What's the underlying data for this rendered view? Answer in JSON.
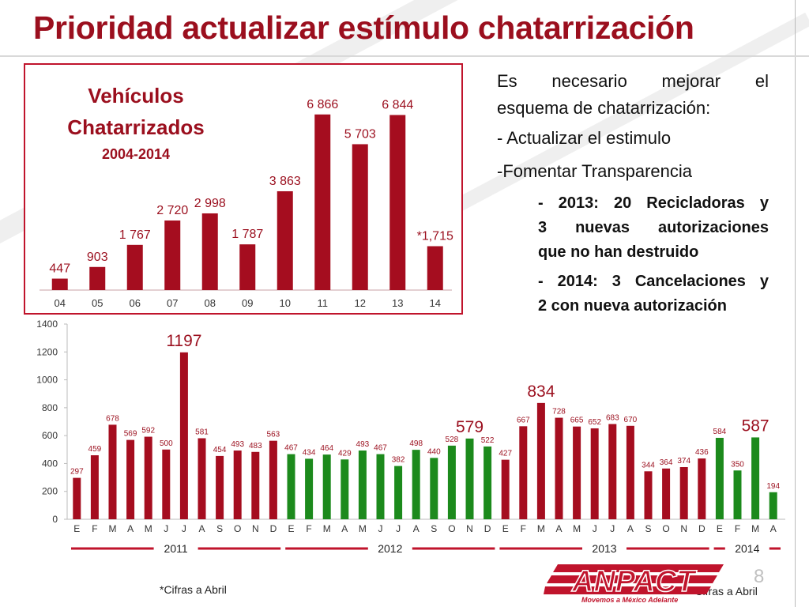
{
  "title": "Prioridad actualizar estímulo chatarrización",
  "annual_box": {
    "title_line1": "Vehículos",
    "title_line2": "Chatarrizados",
    "subtitle": "2004-2014"
  },
  "bullets": {
    "intro_line1": "Es necesario mejorar el",
    "intro_line2": "esquema de chatarrización:",
    "item1": "- Actualizar el estimulo",
    "item2": "-Fomentar Transparencia",
    "sub1_line1": "- 2013: 20 Recicladoras y",
    "sub1_line2": "3 nuevas autorizaciones",
    "sub1_line3": "que no han destruido",
    "sub2_line1": "- 2014: 3 Cancelaciones y",
    "sub2_line2": "2 con nueva autorización"
  },
  "colors": {
    "accent": "#9b0f1e",
    "bar_red": "#a50d1f",
    "bar_green": "#1c8a1c",
    "border": "#c0142c"
  },
  "chart_data": [
    {
      "type": "bar",
      "title": "Vehículos Chatarrizados",
      "subtitle": "2004-2014",
      "categories": [
        "04",
        "05",
        "06",
        "07",
        "08",
        "09",
        "10",
        "11",
        "12",
        "13",
        "14"
      ],
      "values": [
        447,
        903,
        1767,
        2720,
        2998,
        1787,
        3863,
        6866,
        5703,
        6844,
        1715
      ],
      "data_labels": [
        "447",
        "903",
        "1 767",
        "2 720",
        "2 998",
        "1 787",
        "3 863",
        "6 866",
        "5 703",
        "6 844",
        "*1,715"
      ],
      "ylim": [
        0,
        7200
      ],
      "grid": false
    },
    {
      "type": "bar",
      "categories": [
        "E",
        "F",
        "M",
        "A",
        "M",
        "J",
        "J",
        "A",
        "S",
        "O",
        "N",
        "D",
        "E",
        "F",
        "M",
        "A",
        "M",
        "J",
        "J",
        "A",
        "S",
        "O",
        "N",
        "D",
        "E",
        "F",
        "M",
        "A",
        "M",
        "J",
        "J",
        "A",
        "S",
        "O",
        "N",
        "D",
        "E",
        "F",
        "M",
        "A"
      ],
      "values": [
        297,
        459,
        678,
        569,
        592,
        500,
        1197,
        581,
        454,
        493,
        483,
        563,
        467,
        434,
        464,
        429,
        493,
        467,
        382,
        498,
        440,
        528,
        579,
        522,
        427,
        667,
        834,
        728,
        665,
        652,
        683,
        670,
        344,
        364,
        374,
        436,
        584,
        350,
        587,
        194
      ],
      "series_colors": [
        "red",
        "red",
        "red",
        "red",
        "red",
        "red",
        "red",
        "red",
        "red",
        "red",
        "red",
        "red",
        "green",
        "green",
        "green",
        "green",
        "green",
        "green",
        "green",
        "green",
        "green",
        "green",
        "green",
        "green",
        "red",
        "red",
        "red",
        "red",
        "red",
        "red",
        "red",
        "red",
        "red",
        "red",
        "red",
        "red",
        "green",
        "green",
        "green",
        "green"
      ],
      "highlighted": [
        1197,
        579,
        834,
        587
      ],
      "year_groups": [
        {
          "label": "2011",
          "start": 0,
          "end": 11
        },
        {
          "label": "2012",
          "start": 12,
          "end": 23
        },
        {
          "label": "2013",
          "start": 24,
          "end": 35
        },
        {
          "label": "2014",
          "start": 36,
          "end": 39
        }
      ],
      "yticks": [
        0,
        200,
        400,
        600,
        800,
        1000,
        1200,
        1400
      ],
      "ylim": [
        0,
        1400
      ],
      "grid": false
    }
  ],
  "footnotes": {
    "left": "*Cifras a Abril",
    "right": "*Cifras a Abril"
  },
  "logo": {
    "name": "ANPACT",
    "tagline": "Movemos a México Adelante"
  },
  "page_number": "8"
}
